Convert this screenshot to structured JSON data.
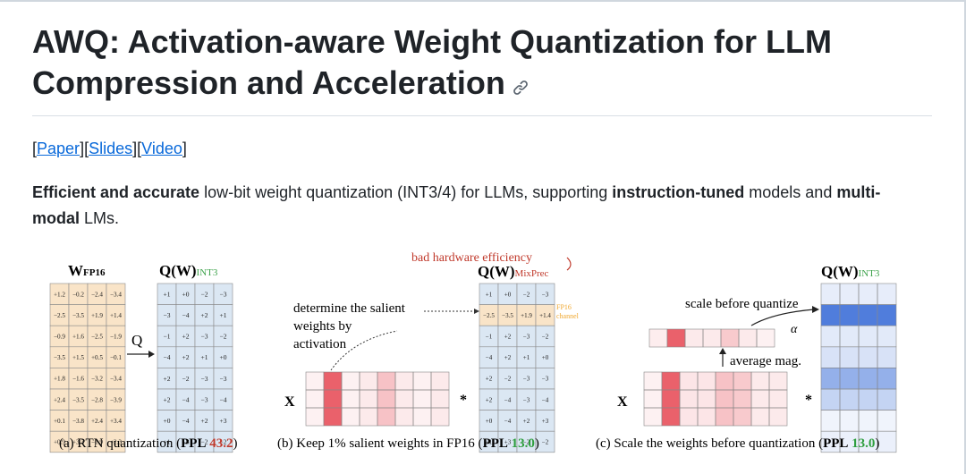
{
  "title": "AWQ: Activation-aware Weight Quantization for LLM Compression and Acceleration",
  "title_line1": "AWQ: Activation-aware Weight Quantization for LLM",
  "title_line2": "Compression and Acceleration",
  "links": [
    {
      "label": "Paper"
    },
    {
      "label": "Slides"
    },
    {
      "label": "Video"
    }
  ],
  "intro": {
    "p1": "Efficient and accurate",
    "p2": " low-bit weight quantization (INT3/4) for LLMs, supporting ",
    "p3": "instruction-tuned",
    "p4": " models and ",
    "p5": "multi-modal",
    "p6": " LMs."
  },
  "figure": {
    "panel_a": {
      "w_label": "W",
      "w_sub": "FP16",
      "q_label": "Q(W)",
      "q_sub": "INT3",
      "op": "Q",
      "fp_matrix": [
        [
          "+1.2",
          "−0.2",
          "−2.4",
          "−3.4"
        ],
        [
          "−2.5",
          "−3.5",
          "+1.9",
          "+1.4"
        ],
        [
          "−0.9",
          "+1.6",
          "−2.5",
          "−1.9"
        ],
        [
          "−3.5",
          "+1.5",
          "+0.5",
          "−0.1"
        ],
        [
          "+1.8",
          "−1.6",
          "−3.2",
          "−3.4"
        ],
        [
          "+2.4",
          "−3.5",
          "−2.8",
          "−3.9"
        ],
        [
          "+0.1",
          "−3.8",
          "+2.4",
          "+3.4"
        ],
        [
          "+0.9",
          "+3.3",
          "−1.9",
          "−2.3"
        ]
      ],
      "int_matrix": [
        [
          "+1",
          "+0",
          "−2",
          "−3"
        ],
        [
          "−3",
          "−4",
          "+2",
          "+1"
        ],
        [
          "−1",
          "+2",
          "−3",
          "−2"
        ],
        [
          "−4",
          "+2",
          "+1",
          "+0"
        ],
        [
          "+2",
          "−2",
          "−3",
          "−3"
        ],
        [
          "+2",
          "−4",
          "−3",
          "−4"
        ],
        [
          "+0",
          "−4",
          "+2",
          "+3"
        ],
        [
          "+1",
          "+3",
          "−2",
          "−2"
        ]
      ],
      "caption_pre": "(a) RTN quantization (",
      "caption_ppl": "PPL",
      "caption_val": "43.2",
      "caption_post": ")"
    },
    "panel_b": {
      "annotation": "bad hardware efficiency",
      "q_label": "Q(W)",
      "q_sub": "MixPrec",
      "fp16_tag_1": "FP16",
      "fp16_tag_2": "channel",
      "text_1": "determine the salient",
      "text_2": "weights by",
      "text_3": "activation",
      "x_label": "X",
      "mult": "*",
      "matrix": [
        [
          "+1",
          "+0",
          "−2",
          "−3"
        ],
        [
          "−2.5",
          "−3.5",
          "+1.9",
          "+1.4"
        ],
        [
          "−1",
          "+2",
          "−3",
          "−2"
        ],
        [
          "−4",
          "+2",
          "+1",
          "+0"
        ],
        [
          "+2",
          "−2",
          "−3",
          "−3"
        ],
        [
          "+2",
          "−4",
          "−3",
          "−4"
        ],
        [
          "+0",
          "−4",
          "+2",
          "+3"
        ],
        [
          "+1",
          "+3",
          "−2",
          "−2"
        ]
      ],
      "caption_pre": "(b) Keep 1% salient weights in FP16 (",
      "caption_ppl": "PPL",
      "caption_val": "13.0",
      "caption_post": ")"
    },
    "panel_c": {
      "q_label": "Q(W)",
      "q_sub": "INT3",
      "scale_text": "scale before quantize",
      "alpha": "α",
      "avg_text": "average mag.",
      "x_label": "X",
      "mult": "*",
      "caption_pre": "(c) Scale the weights before quantization (",
      "caption_ppl": "PPL",
      "caption_val": "13.0",
      "caption_post": ")"
    },
    "colors": {
      "fp_fill": "#f9e4c8",
      "int_fill": "#dbe7f3",
      "salient_red": "#e8505b",
      "ppl_red": "#c0392b",
      "ppl_green": "#2e9e3e",
      "accent_green": "#3fa34d",
      "annotation_red": "#c0392b",
      "fp16_orange": "#f0a830",
      "scale_blue": "#3d6fd8"
    }
  }
}
